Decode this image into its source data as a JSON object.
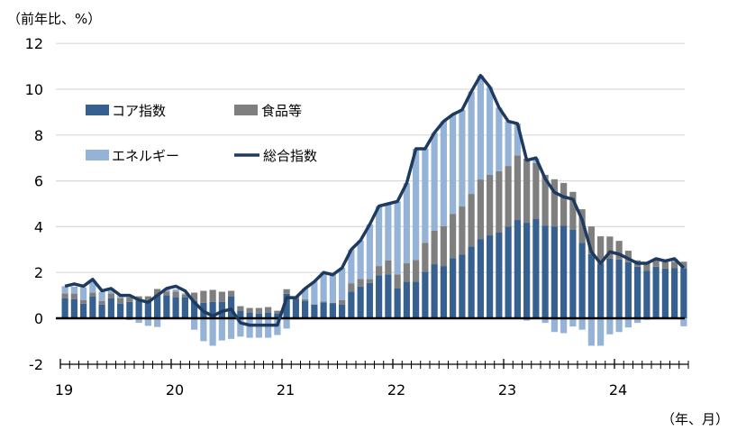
{
  "chart_data": {
    "type": "bar",
    "subtype": "stacked bar + line",
    "ylabel": "（前年比、%）",
    "xlabel": "（年、月）",
    "ylim": [
      -2,
      12
    ],
    "yticks": [
      -2,
      0,
      2,
      4,
      6,
      8,
      10,
      12
    ],
    "ytick_labels": [
      "-2",
      "0",
      "2",
      "4",
      "6",
      "8",
      "10",
      "12"
    ],
    "xtick_labels": [
      "19",
      "20",
      "21",
      "22",
      "23",
      "24"
    ],
    "grid": true,
    "legend_position": "top-left",
    "start": "2019-01",
    "months": 68,
    "series": [
      {
        "name": "コア指数",
        "kind": "bar",
        "color": "#36608f",
        "values": [
          0.88,
          0.84,
          0.64,
          0.96,
          0.6,
          0.88,
          0.64,
          0.72,
          0.78,
          0.8,
          1.04,
          1.0,
          0.92,
          0.92,
          0.76,
          0.68,
          0.72,
          0.72,
          0.96,
          0.33,
          0.25,
          0.21,
          0.25,
          0.21,
          1.07,
          0.85,
          0.75,
          0.6,
          0.7,
          0.65,
          0.59,
          1.17,
          1.38,
          1.54,
          1.88,
          1.92,
          1.3,
          1.6,
          1.6,
          2.04,
          2.36,
          2.28,
          2.63,
          2.79,
          3.14,
          3.46,
          3.62,
          3.74,
          4.01,
          4.29,
          4.17,
          4.33,
          4.05,
          4.01,
          4.05,
          3.86,
          3.3,
          2.8,
          2.38,
          2.6,
          2.57,
          2.45,
          2.25,
          2.08,
          2.25,
          2.17,
          2.2,
          2.18
        ]
      },
      {
        "name": "食品等",
        "kind": "bar",
        "color": "#7f7f7f",
        "values": [
          0.2,
          0.24,
          0.16,
          0.16,
          0.16,
          0.2,
          0.24,
          0.2,
          0.18,
          0.16,
          0.24,
          0.16,
          0.24,
          0.12,
          0.36,
          0.52,
          0.52,
          0.44,
          0.24,
          0.2,
          0.2,
          0.24,
          0.24,
          0.12,
          0.2,
          0.1,
          0.08,
          0.02,
          0.03,
          0.03,
          0.21,
          0.36,
          0.34,
          0.17,
          0.4,
          0.6,
          0.62,
          0.8,
          0.95,
          1.26,
          1.47,
          1.74,
          1.93,
          2.09,
          2.29,
          2.6,
          2.64,
          2.68,
          2.64,
          2.82,
          2.8,
          2.45,
          2.21,
          2.06,
          1.86,
          1.66,
          1.46,
          1.21,
          1.2,
          0.97,
          0.81,
          0.5,
          0.28,
          0.33,
          0.29,
          0.28,
          0.27,
          0.29
        ]
      },
      {
        "name": "エネルギー",
        "kind": "bar",
        "color": "#95b3d7",
        "values": [
          0.32,
          0.3,
          0.55,
          0.5,
          0.4,
          0.2,
          0.1,
          -0.08,
          -0.2,
          -0.33,
          -0.38,
          0.1,
          0.1,
          0.05,
          -0.5,
          -1.0,
          -1.2,
          -0.97,
          -0.9,
          -0.8,
          -0.85,
          -0.85,
          -0.85,
          -0.73,
          -0.45,
          -0.05,
          0.47,
          0.98,
          1.27,
          1.22,
          1.4,
          1.47,
          1.68,
          2.39,
          2.62,
          2.48,
          3.18,
          3.5,
          4.85,
          4.1,
          4.27,
          4.58,
          4.34,
          4.22,
          4.47,
          4.54,
          3.84,
          2.78,
          1.95,
          1.39,
          -0.1,
          0.2,
          -0.2,
          -0.6,
          -0.65,
          -0.36,
          -0.5,
          -1.2,
          -1.2,
          -0.7,
          -0.6,
          -0.4,
          -0.2,
          -0.07,
          0.06,
          0.05,
          0.13,
          -0.35
        ]
      },
      {
        "name": "総合指数",
        "kind": "line",
        "color": "#1f3a5f",
        "values": [
          1.4,
          1.5,
          1.4,
          1.7,
          1.2,
          1.3,
          1.0,
          1.0,
          0.8,
          0.7,
          1.0,
          1.3,
          1.4,
          1.2,
          0.7,
          0.3,
          0.1,
          0.3,
          0.4,
          -0.2,
          -0.3,
          -0.3,
          -0.3,
          -0.3,
          0.9,
          0.9,
          1.3,
          1.6,
          2.0,
          1.9,
          2.2,
          3.0,
          3.4,
          4.1,
          4.9,
          5.0,
          5.1,
          5.9,
          7.4,
          7.4,
          8.1,
          8.6,
          8.9,
          9.1,
          9.9,
          10.6,
          10.1,
          9.2,
          8.6,
          8.5,
          6.9,
          7.0,
          6.1,
          5.5,
          5.3,
          5.2,
          4.3,
          2.9,
          2.4,
          2.9,
          2.8,
          2.6,
          2.4,
          2.4,
          2.6,
          2.5,
          2.6,
          2.2
        ]
      }
    ]
  }
}
